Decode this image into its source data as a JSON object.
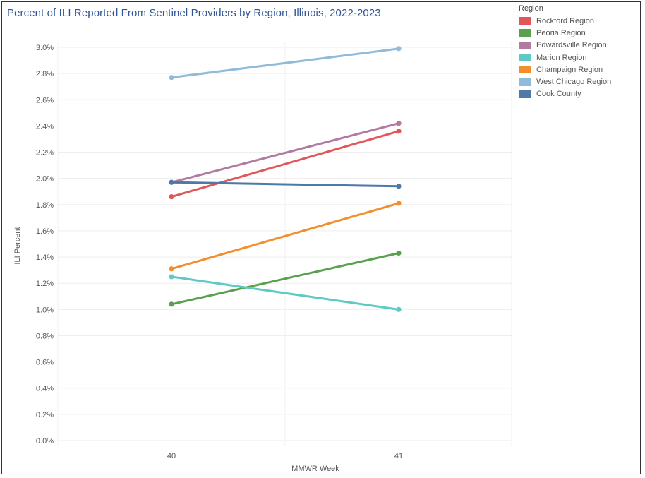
{
  "chart_data": {
    "type": "line",
    "title": "Percent of ILI Reported From Sentinel Providers by Region, Illinois, 2022-2023",
    "xlabel": "MMWR Week",
    "ylabel": "ILI Percent",
    "x": [
      "40",
      "41"
    ],
    "ylim": [
      0,
      3.1
    ],
    "y_ticks": [
      {
        "value": 0.0,
        "label": "0.0%"
      },
      {
        "value": 0.2,
        "label": "0.2%"
      },
      {
        "value": 0.4,
        "label": "0.4%"
      },
      {
        "value": 0.6,
        "label": "0.6%"
      },
      {
        "value": 0.8,
        "label": "0.8%"
      },
      {
        "value": 1.0,
        "label": "1.0%"
      },
      {
        "value": 1.2,
        "label": "1.2%"
      },
      {
        "value": 1.4,
        "label": "1.4%"
      },
      {
        "value": 1.6,
        "label": "1.6%"
      },
      {
        "value": 1.8,
        "label": "1.8%"
      },
      {
        "value": 2.0,
        "label": "2.0%"
      },
      {
        "value": 2.2,
        "label": "2.2%"
      },
      {
        "value": 2.4,
        "label": "2.4%"
      },
      {
        "value": 2.6,
        "label": "2.6%"
      },
      {
        "value": 2.8,
        "label": "2.8%"
      },
      {
        "value": 3.0,
        "label": "3.0%"
      }
    ],
    "grid": true,
    "legend_title": "Region",
    "legend_position": "top-right",
    "series": [
      {
        "name": "Rockford Region",
        "color": "#e15759",
        "values": [
          1.86,
          2.36
        ]
      },
      {
        "name": "Peoria Region",
        "color": "#59a14f",
        "values": [
          1.04,
          1.43
        ]
      },
      {
        "name": "Edwardsville Region",
        "color": "#b07aa1",
        "values": [
          1.97,
          2.42
        ]
      },
      {
        "name": "Marion Region",
        "color": "#5fc9c4",
        "values": [
          1.25,
          1.0
        ]
      },
      {
        "name": "Champaign Region",
        "color": "#f28e2b",
        "values": [
          1.31,
          1.81
        ]
      },
      {
        "name": "West Chicago Region",
        "color": "#91bbda",
        "values": [
          2.77,
          2.99
        ]
      },
      {
        "name": "Cook County",
        "color": "#4e79a7",
        "values": [
          1.97,
          1.94
        ]
      }
    ]
  }
}
